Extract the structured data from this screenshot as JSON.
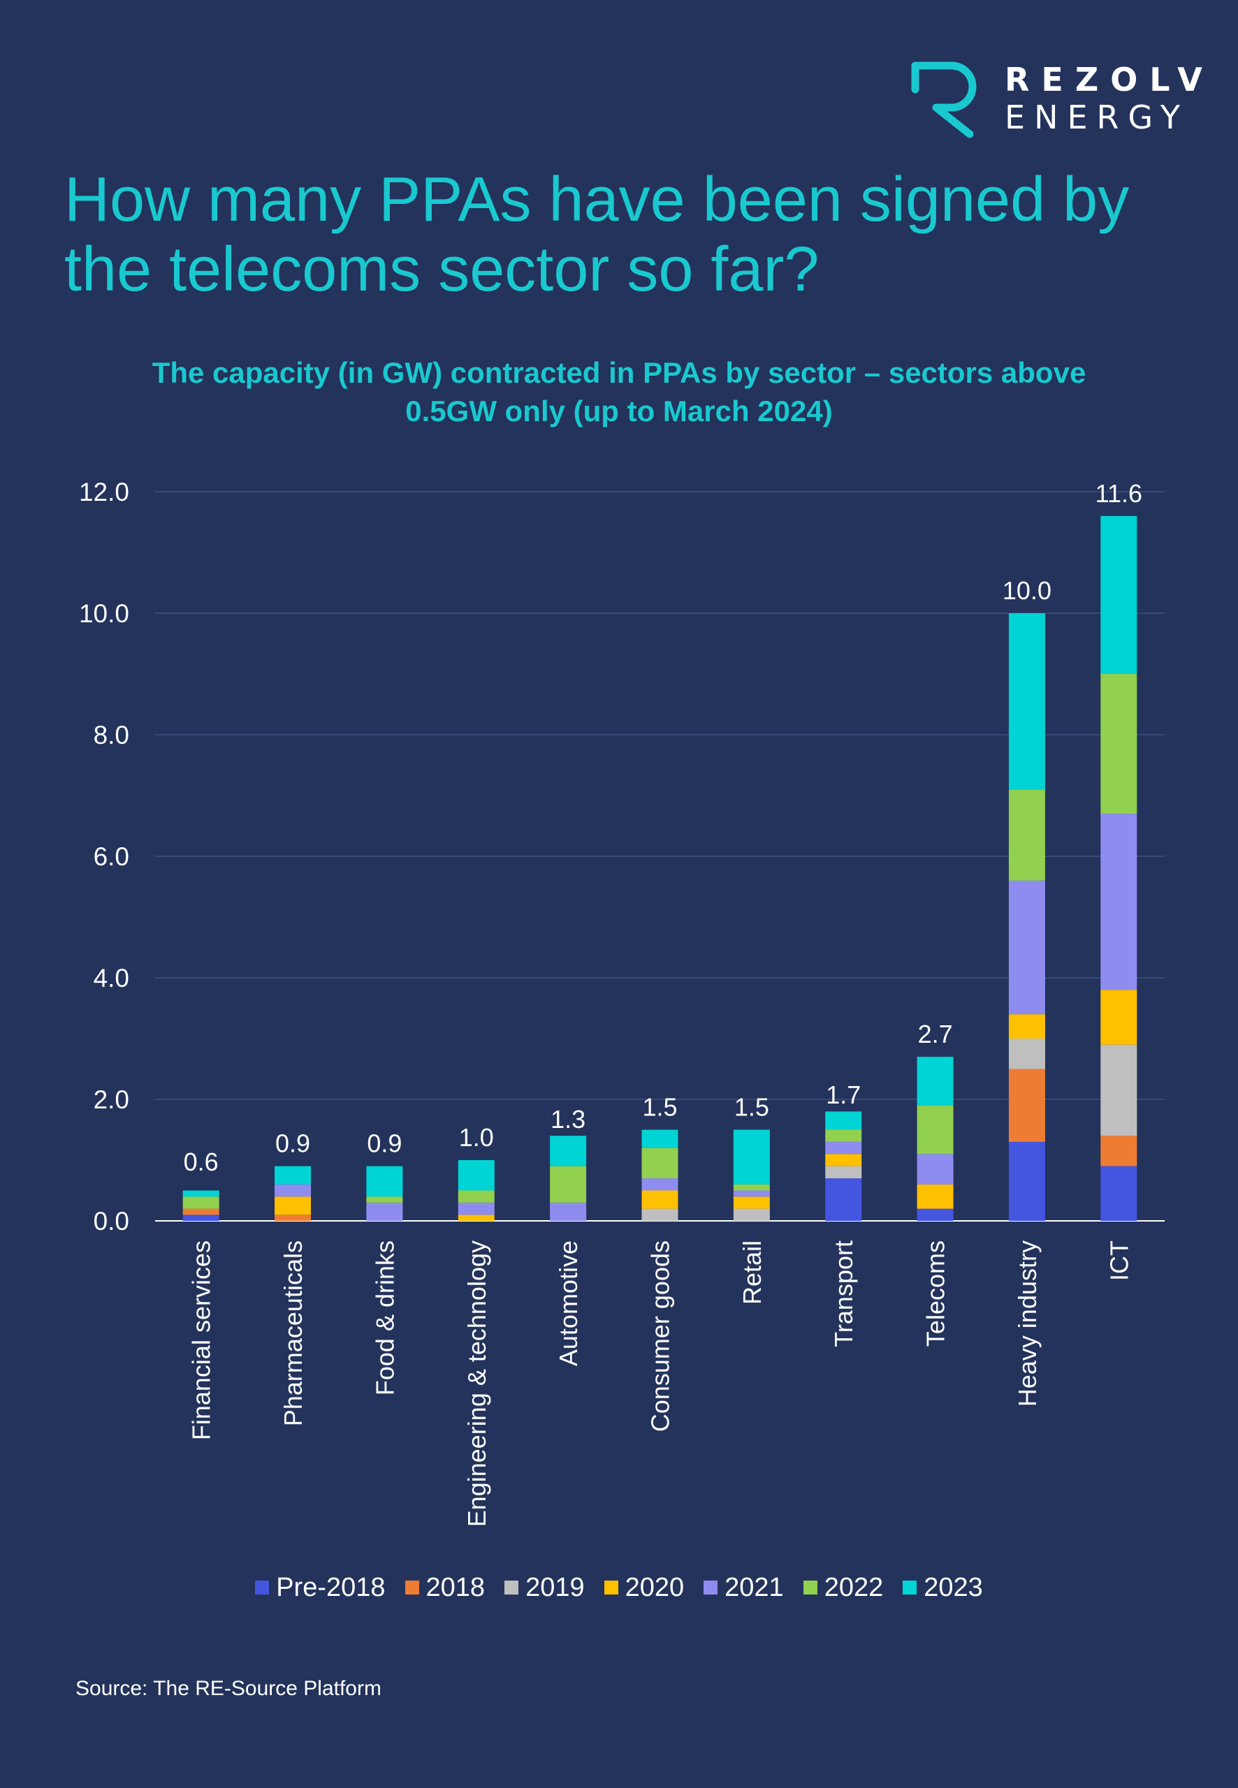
{
  "brand": {
    "word1": "REZOLV",
    "word2": "ENERGY",
    "accent": "#19c9cf"
  },
  "headline": "How many PPAs have been signed by the telecoms sector so far?",
  "source": "Source: The RE-Source Platform",
  "chart_data": {
    "type": "bar",
    "stacked": true,
    "title": "The capacity (in GW) contracted in PPAs by sector – sectors above 0.5GW only (up to March 2024)",
    "categories": [
      "Financial services",
      "Pharmaceuticals",
      "Food & drinks",
      "Engineering & technology",
      "Automotive",
      "Consumer goods",
      "Retail",
      "Transport",
      "Telecoms",
      "Heavy industry",
      "ICT"
    ],
    "totals": [
      0.6,
      0.9,
      0.9,
      1.0,
      1.3,
      1.5,
      1.5,
      1.7,
      2.7,
      10.0,
      11.6
    ],
    "series": [
      {
        "name": "Pre-2018",
        "color": "#4455e0",
        "values": [
          0.1,
          0.0,
          0.0,
          0.0,
          0.0,
          0.0,
          0.0,
          0.7,
          0.2,
          1.3,
          0.9
        ]
      },
      {
        "name": "2018",
        "color": "#ee7d33",
        "values": [
          0.1,
          0.1,
          0.0,
          0.0,
          0.0,
          0.0,
          0.0,
          0.0,
          0.0,
          1.2,
          0.5
        ]
      },
      {
        "name": "2019",
        "color": "#bfbfbf",
        "values": [
          0.0,
          0.0,
          0.0,
          0.0,
          0.0,
          0.2,
          0.2,
          0.2,
          0.0,
          0.5,
          1.5
        ]
      },
      {
        "name": "2020",
        "color": "#ffc000",
        "values": [
          0.0,
          0.3,
          0.0,
          0.1,
          0.0,
          0.3,
          0.2,
          0.2,
          0.4,
          0.4,
          0.9
        ]
      },
      {
        "name": "2021",
        "color": "#8f8cf0",
        "values": [
          0.0,
          0.2,
          0.3,
          0.2,
          0.3,
          0.2,
          0.1,
          0.2,
          0.5,
          2.2,
          2.9
        ]
      },
      {
        "name": "2022",
        "color": "#92d050",
        "values": [
          0.2,
          0.0,
          0.1,
          0.2,
          0.6,
          0.5,
          0.1,
          0.2,
          0.8,
          1.5,
          2.3
        ]
      },
      {
        "name": "2023",
        "color": "#00d4d4",
        "values": [
          0.1,
          0.3,
          0.5,
          0.5,
          0.5,
          0.3,
          0.9,
          0.3,
          0.8,
          2.9,
          2.6
        ]
      }
    ],
    "ylim": [
      0,
      12
    ],
    "yticks": [
      "0.0",
      "2.0",
      "4.0",
      "6.0",
      "8.0",
      "10.0",
      "12.0"
    ],
    "grid": true,
    "legend_position": "bottom"
  }
}
